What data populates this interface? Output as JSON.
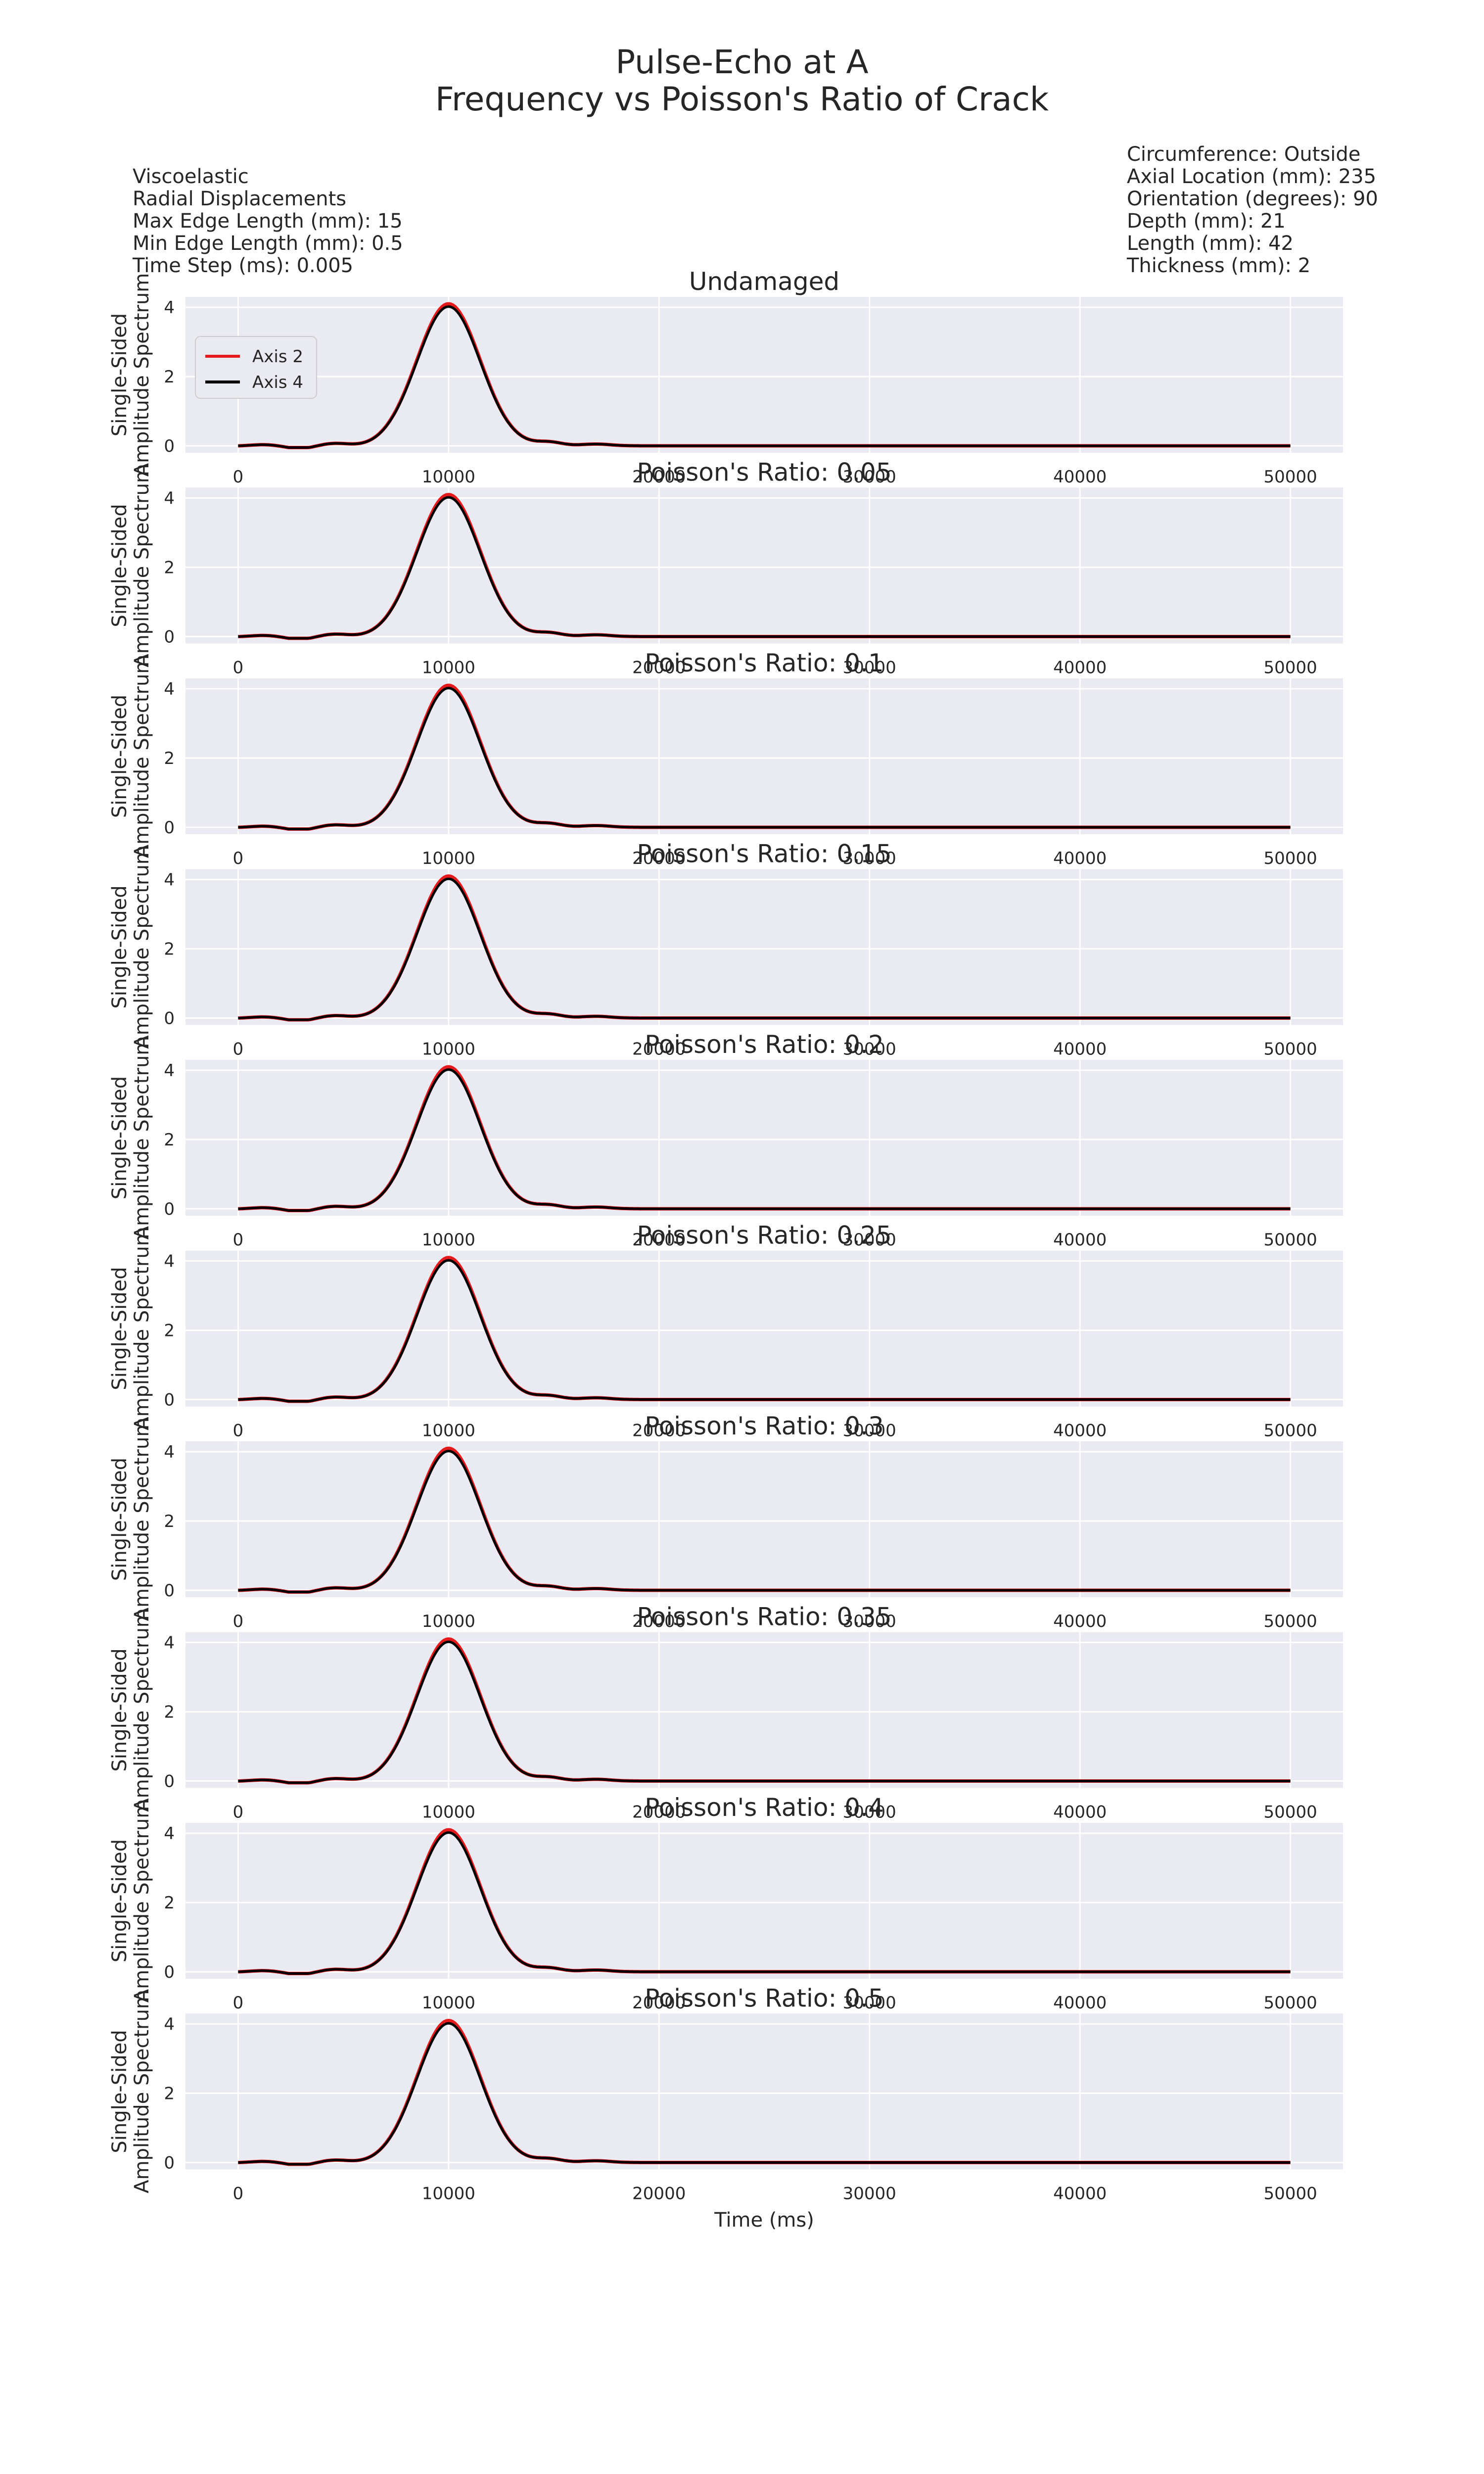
{
  "figure": {
    "title_line1": "Pulse-Echo at A",
    "title_line2": "Frequency vs Poisson's Ratio of Crack",
    "info_left": [
      "Viscoelastic",
      "Radial Displacements",
      "Max Edge Length (mm): 15",
      "Min Edge Length (mm): 0.5",
      "Time Step (ms): 0.005"
    ],
    "info_right": [
      "Circumference: Outside",
      "Axial Location (mm): 235",
      "Orientation (degrees): 90",
      "Depth (mm): 21",
      "Length (mm): 42",
      "Thickness (mm): 2"
    ]
  },
  "colors": {
    "axis2": "#e41a1c",
    "axis4": "#000000",
    "panel_bg": "#eaeaf2",
    "grid": "#ffffff"
  },
  "chart_data": {
    "type": "line",
    "xlabel": "Time (ms)",
    "ylabel_line1": "Single-Sided",
    "ylabel_line2": "Amplitude Spectrum",
    "xlim": [
      -2500,
      52500
    ],
    "ylim": [
      -0.2,
      4.3
    ],
    "x_ticks": [
      0,
      10000,
      20000,
      30000,
      40000,
      50000
    ],
    "y_ticks": [
      0,
      2,
      4
    ],
    "grid": true,
    "legend": {
      "placement": "center-left",
      "entries": [
        "Axis 2",
        "Axis 4"
      ]
    },
    "panels": [
      {
        "title": "Undamaged",
        "series": [
          {
            "name": "Axis 2",
            "peak_x": 10000,
            "peak_y": 4.1
          },
          {
            "name": "Axis 4",
            "peak_x": 10000,
            "peak_y": 4.02
          }
        ]
      },
      {
        "title": "Poisson's Ratio: 0.05",
        "series": [
          {
            "name": "Axis 2",
            "peak_x": 10000,
            "peak_y": 4.1
          },
          {
            "name": "Axis 4",
            "peak_x": 10000,
            "peak_y": 4.02
          }
        ]
      },
      {
        "title": "Poisson's Ratio: 0.1",
        "series": [
          {
            "name": "Axis 2",
            "peak_x": 10000,
            "peak_y": 4.1
          },
          {
            "name": "Axis 4",
            "peak_x": 10000,
            "peak_y": 4.02
          }
        ]
      },
      {
        "title": "Poisson's Ratio: 0.15",
        "series": [
          {
            "name": "Axis 2",
            "peak_x": 10000,
            "peak_y": 4.1
          },
          {
            "name": "Axis 4",
            "peak_x": 10000,
            "peak_y": 4.02
          }
        ]
      },
      {
        "title": "Poisson's Ratio: 0.2",
        "series": [
          {
            "name": "Axis 2",
            "peak_x": 10000,
            "peak_y": 4.1
          },
          {
            "name": "Axis 4",
            "peak_x": 10000,
            "peak_y": 4.02
          }
        ]
      },
      {
        "title": "Poisson's Ratio: 0.25",
        "series": [
          {
            "name": "Axis 2",
            "peak_x": 10000,
            "peak_y": 4.1
          },
          {
            "name": "Axis 4",
            "peak_x": 10000,
            "peak_y": 4.02
          }
        ]
      },
      {
        "title": "Poisson's Ratio: 0.3",
        "series": [
          {
            "name": "Axis 2",
            "peak_x": 10000,
            "peak_y": 4.1
          },
          {
            "name": "Axis 4",
            "peak_x": 10000,
            "peak_y": 4.02
          }
        ]
      },
      {
        "title": "Poisson's Ratio: 0.35",
        "series": [
          {
            "name": "Axis 2",
            "peak_x": 10000,
            "peak_y": 4.1
          },
          {
            "name": "Axis 4",
            "peak_x": 10000,
            "peak_y": 4.02
          }
        ]
      },
      {
        "title": "Poisson's Ratio: 0.4",
        "series": [
          {
            "name": "Axis 2",
            "peak_x": 10000,
            "peak_y": 4.1
          },
          {
            "name": "Axis 4",
            "peak_x": 10000,
            "peak_y": 4.02
          }
        ]
      },
      {
        "title": "Poisson's Ratio: 0.5",
        "series": [
          {
            "name": "Axis 2",
            "peak_x": 10000,
            "peak_y": 4.1
          },
          {
            "name": "Axis 4",
            "peak_x": 10000,
            "peak_y": 4.02
          }
        ]
      }
    ]
  }
}
